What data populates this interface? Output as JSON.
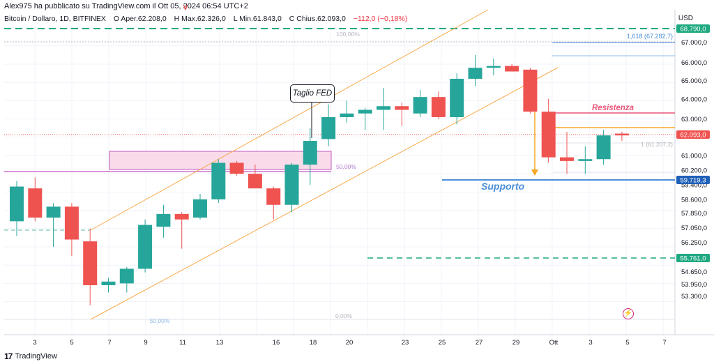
{
  "header": "Alex975 ha pubblicato su TradingView.com il Ott 05, 2024 06:54 UTC+2",
  "legend": {
    "symbol": "Bitcoin / Dollaro, 1D, BITFINEX",
    "o_label": "O",
    "o_val": "Aper.62.208,0",
    "h_label": "H",
    "h_val": "Max.62.326,0",
    "l_label": "L",
    "l_val": "Min.61.843,0",
    "c_label": "C",
    "c_val": "Chius.62.093,0",
    "change": "−112,0 (−0,18%)"
  },
  "currency": "USD",
  "footer": {
    "logo": "17",
    "brand": "TradingView"
  },
  "chart_data": {
    "type": "candlestick",
    "x_ticks": [
      "3",
      "5",
      "7",
      "9",
      "11",
      "13",
      "16",
      "18",
      "20",
      "23",
      "25",
      "27",
      "29",
      "Ott",
      "3",
      "5",
      "7"
    ],
    "y_ticks": [
      "67.000,0",
      "66.000,0",
      "65.000,0",
      "64.000,0",
      "63.000,0",
      "62.093,0",
      "61.000,0",
      "60.200,0",
      "59.719,3",
      "59.400,0",
      "58.600,0",
      "57.850,0",
      "57.050,0",
      "56.250,0",
      "55.761,0",
      "55.400,0",
      "54.650,0",
      "53.950,0",
      "53.300,0"
    ],
    "candles": [
      {
        "o": 57.4,
        "h": 59.6,
        "l": 56.6,
        "c": 59.3
      },
      {
        "o": 59.2,
        "h": 59.8,
        "l": 57.4,
        "c": 57.6
      },
      {
        "o": 57.6,
        "h": 58.4,
        "l": 56.0,
        "c": 58.2
      },
      {
        "o": 58.2,
        "h": 58.4,
        "l": 55.5,
        "c": 56.4
      },
      {
        "o": 56.3,
        "h": 57.0,
        "l": 52.8,
        "c": 53.9
      },
      {
        "o": 53.9,
        "h": 54.3,
        "l": 53.5,
        "c": 54.1
      },
      {
        "o": 54.0,
        "h": 54.9,
        "l": 53.5,
        "c": 54.8
      },
      {
        "o": 54.8,
        "h": 57.5,
        "l": 54.6,
        "c": 57.2
      },
      {
        "o": 57.1,
        "h": 58.3,
        "l": 56.5,
        "c": 57.8
      },
      {
        "o": 57.8,
        "h": 57.9,
        "l": 55.9,
        "c": 57.5
      },
      {
        "o": 57.6,
        "h": 58.9,
        "l": 57.5,
        "c": 58.6
      },
      {
        "o": 58.6,
        "h": 60.8,
        "l": 58.4,
        "c": 60.6
      },
      {
        "o": 60.6,
        "h": 60.7,
        "l": 59.9,
        "c": 60.0
      },
      {
        "o": 60.0,
        "h": 60.5,
        "l": 59.2,
        "c": 59.2
      },
      {
        "o": 59.2,
        "h": 59.3,
        "l": 57.5,
        "c": 58.3
      },
      {
        "o": 58.3,
        "h": 60.6,
        "l": 57.9,
        "c": 60.5
      },
      {
        "o": 60.5,
        "h": 62.5,
        "l": 59.4,
        "c": 61.8
      },
      {
        "o": 61.9,
        "h": 63.8,
        "l": 61.5,
        "c": 63.1
      },
      {
        "o": 63.1,
        "h": 64.0,
        "l": 62.8,
        "c": 63.3
      },
      {
        "o": 63.3,
        "h": 63.6,
        "l": 62.4,
        "c": 63.5
      },
      {
        "o": 63.5,
        "h": 64.7,
        "l": 62.4,
        "c": 63.7
      },
      {
        "o": 63.7,
        "h": 63.9,
        "l": 62.6,
        "c": 63.5
      },
      {
        "o": 63.3,
        "h": 64.6,
        "l": 63.1,
        "c": 64.2
      },
      {
        "o": 64.2,
        "h": 64.5,
        "l": 63.0,
        "c": 63.1
      },
      {
        "o": 63.1,
        "h": 65.5,
        "l": 62.7,
        "c": 65.2
      },
      {
        "o": 65.2,
        "h": 66.5,
        "l": 64.8,
        "c": 65.8
      },
      {
        "o": 65.8,
        "h": 66.3,
        "l": 65.4,
        "c": 65.9
      },
      {
        "o": 65.9,
        "h": 66.0,
        "l": 65.6,
        "c": 65.6
      },
      {
        "o": 65.7,
        "h": 65.8,
        "l": 63.3,
        "c": 63.4
      },
      {
        "o": 63.4,
        "h": 64.1,
        "l": 60.6,
        "c": 60.9
      },
      {
        "o": 60.9,
        "h": 62.3,
        "l": 60.0,
        "c": 60.7
      },
      {
        "o": 60.7,
        "h": 61.5,
        "l": 60.0,
        "c": 60.8
      },
      {
        "o": 60.8,
        "h": 62.4,
        "l": 60.5,
        "c": 62.1
      },
      {
        "o": 62.2,
        "h": 62.3,
        "l": 61.8,
        "c": 62.1
      }
    ],
    "annotations": {
      "resistance_label": "Resistenza",
      "support_label": "Supporto",
      "fed_label": "Taglio FED",
      "fib_100": "100,00%",
      "fib_50": "50,00%",
      "fib_0": "0,00%",
      "fib_0_left": "50,00%",
      "fib_1618": "1,618 (67.282,7)",
      "fib_1": "1 (61.207,2)",
      "label_top": "68.790,0",
      "label_current": "62.093,0",
      "label_support": "59.719,3",
      "label_low": "55.761,0",
      "fed_marker": "V"
    },
    "colors": {
      "up": "#26a69a",
      "down": "#ef5350",
      "channel": "#f7a84a",
      "support": "#4a8fd8",
      "resistance": "#e9577a",
      "dashed": "#1fa981",
      "zone_fill": "#f9dbe9",
      "zone_line": "#c458c4"
    }
  }
}
